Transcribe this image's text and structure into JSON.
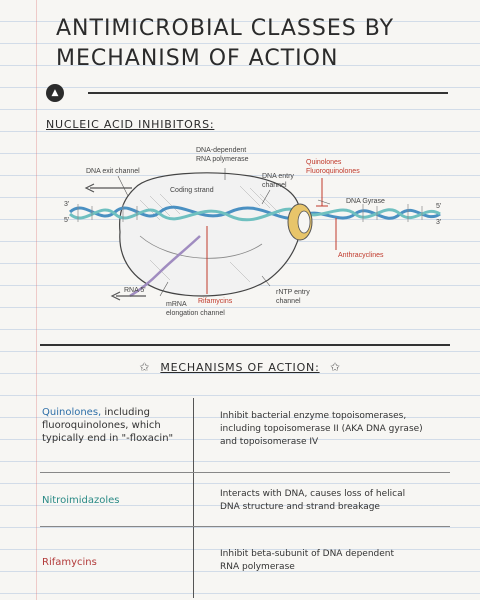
{
  "title_line1": "ANTIMICROBIAL CLASSES BY",
  "title_line2": "MECHANISM OF ACTION",
  "logo_icon": "brand-logo-icon",
  "section_heading": "NUCLEIC ACID INHIBITORS:",
  "diagram": {
    "labels": {
      "dna_exit": "DNA exit channel",
      "rna_pol_1": "DNA-dependent",
      "rna_pol_2": "RNA polymerase",
      "coding_strand": "Coding strand",
      "dna_entry_1": "DNA entry",
      "dna_entry_2": "channel",
      "quinolones_1": "Quinolones",
      "quinolones_2": "Fluoroquinolones",
      "dna_gyrase": "DNA Gyrase",
      "anthracyclines": "Anthracyclines",
      "rifamycins": "Rifamycins",
      "rna_5": "RNA 5'",
      "mrna_1": "mRNA",
      "mrna_2": "elongation channel",
      "ntp_1": "rNTP entry",
      "ntp_2": "channel",
      "three_prime_left": "3'",
      "five_prime_left": "5'",
      "five_prime_right": "5'",
      "three_prime_right": "3'"
    },
    "colors": {
      "dna_blue": "#4a90c2",
      "dna_teal": "#6fc0c0",
      "rna_purple": "#a08cc0",
      "label_red": "#c0392b",
      "gyrase_yellow": "#e8c56a"
    }
  },
  "moa_heading": "MECHANISMS OF ACTION:",
  "rows": [
    {
      "drug_name": "Quinolones,",
      "drug_rest_1": " including",
      "drug_rest_2": "fluoroquinolones, which",
      "drug_rest_3": "typically end in \"-floxacin\"",
      "drug_color": "#2e6fa8",
      "desc_1": "Inhibit bacterial enzyme topoisomerases,",
      "desc_2": "including topoisomerase II (AKA DNA gyrase)",
      "desc_3": "and topoisomerase IV"
    },
    {
      "drug_name": "Nitroimidazoles",
      "drug_color": "#2a8a86",
      "desc_1": "Interacts with DNA, causes loss of helical",
      "desc_2": "DNA structure and strand breakage"
    },
    {
      "drug_name": "Rifamycins",
      "drug_color": "#b23a3a",
      "desc_1": "Inhibit beta-subunit of DNA dependent",
      "desc_2": "RNA polymerase"
    }
  ]
}
